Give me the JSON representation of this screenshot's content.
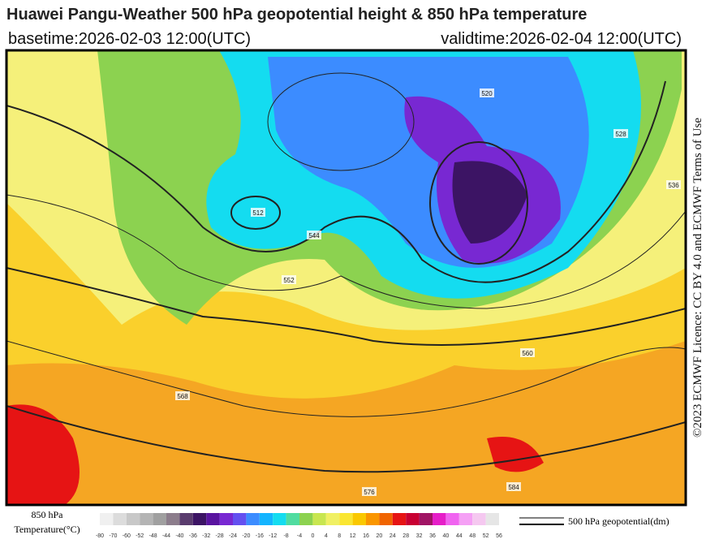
{
  "header": {
    "title": "Huawei Pangu-Weather 500 hPa geopotential height & 850 hPa temperature",
    "basetime": "basetime:2026-02-03 12:00(UTC)",
    "validtime": "validtime:2026-02-04 12:00(UTC)"
  },
  "licence": "©2023 ECMWF Licence: CC BY 4.0 and ECMWF Terms of Use",
  "legend": {
    "temperature_label": [
      "850 hPa",
      "Temperature(°C)"
    ],
    "contour_label": "500 hPa geopotential(dm)"
  },
  "colorbar": {
    "ticks": [
      -80,
      -70,
      -60,
      -52,
      -48,
      -44,
      -40,
      -36,
      -32,
      -28,
      -24,
      -20,
      -16,
      -12,
      -8,
      -4,
      0,
      4,
      8,
      12,
      16,
      20,
      24,
      28,
      32,
      36,
      40,
      44,
      48,
      52,
      56
    ],
    "colors": [
      "#f0f0f0",
      "#dcdcdc",
      "#c8c8c8",
      "#b4b4b4",
      "#a0a0a0",
      "#8c7d8c",
      "#5a3c6e",
      "#3c1464",
      "#5a14a0",
      "#7828d2",
      "#6450f0",
      "#3c8cff",
      "#14b4ff",
      "#14dcf0",
      "#50dca0",
      "#8cd250",
      "#c8e650",
      "#f0f064",
      "#fae632",
      "#fac800",
      "#fa9600",
      "#f06400",
      "#e61414",
      "#c80032",
      "#a01464",
      "#e61ec8",
      "#f064f0",
      "#f5a0f5",
      "#f5c8f0",
      "#e6e6e6"
    ]
  },
  "contour_labels": [
    "512",
    "520",
    "528",
    "536",
    "544",
    "552",
    "560",
    "568",
    "576",
    "584"
  ]
}
